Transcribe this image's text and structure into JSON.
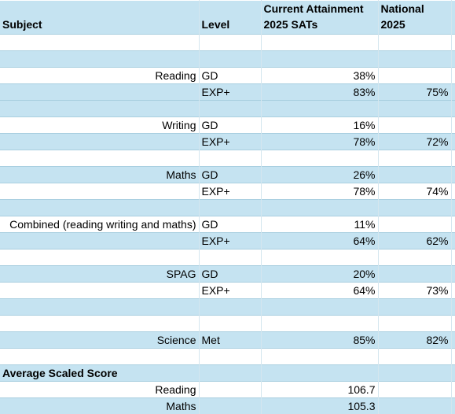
{
  "header": {
    "subject": "Subject",
    "level": "Level",
    "current_line1": "Current Attainment",
    "current_line2": "2025 SATs",
    "national_line1": "National",
    "national_line2": "2025"
  },
  "rows": [
    {
      "subject": "",
      "level": "",
      "current": "",
      "national": ""
    },
    {
      "subject": "",
      "level": "",
      "current": "",
      "national": ""
    },
    {
      "subject": "Reading",
      "level": "GD",
      "current": "38%",
      "national": ""
    },
    {
      "subject": "",
      "level": "EXP+",
      "current": "83%",
      "national": "75%"
    },
    {
      "subject": "",
      "level": "",
      "current": "",
      "national": ""
    },
    {
      "subject": "Writing",
      "level": "GD",
      "current": "16%",
      "national": ""
    },
    {
      "subject": "",
      "level": "EXP+",
      "current": "78%",
      "national": "72%"
    },
    {
      "subject": "",
      "level": "",
      "current": "",
      "national": ""
    },
    {
      "subject": "Maths",
      "level": "GD",
      "current": "26%",
      "national": ""
    },
    {
      "subject": "",
      "level": "EXP+",
      "current": "78%",
      "national": "74%"
    },
    {
      "subject": "",
      "level": "",
      "current": "",
      "national": ""
    },
    {
      "subject": "Combined (reading writing and maths)",
      "level": "GD",
      "current": "11%",
      "national": ""
    },
    {
      "subject": "",
      "level": "EXP+",
      "current": "64%",
      "national": "62%"
    },
    {
      "subject": "",
      "level": "",
      "current": "",
      "national": ""
    },
    {
      "subject": "SPAG",
      "level": "GD",
      "current": "20%",
      "national": ""
    },
    {
      "subject": "",
      "level": "EXP+",
      "current": "64%",
      "national": "73%"
    },
    {
      "subject": "",
      "level": "",
      "current": "",
      "national": ""
    },
    {
      "subject": "",
      "level": "",
      "current": "",
      "national": ""
    },
    {
      "subject": "Science",
      "level": "Met",
      "current": "85%",
      "national": "82%"
    },
    {
      "subject": "",
      "level": "",
      "current": "",
      "national": ""
    }
  ],
  "avg_section": {
    "title": "Average Scaled Score",
    "rows": [
      {
        "subject": "Reading",
        "current": "106.7"
      },
      {
        "subject": "Maths",
        "current": "105.3"
      }
    ]
  },
  "colors": {
    "band": "#c5e3f1",
    "gridline": "#a9cfe0"
  }
}
